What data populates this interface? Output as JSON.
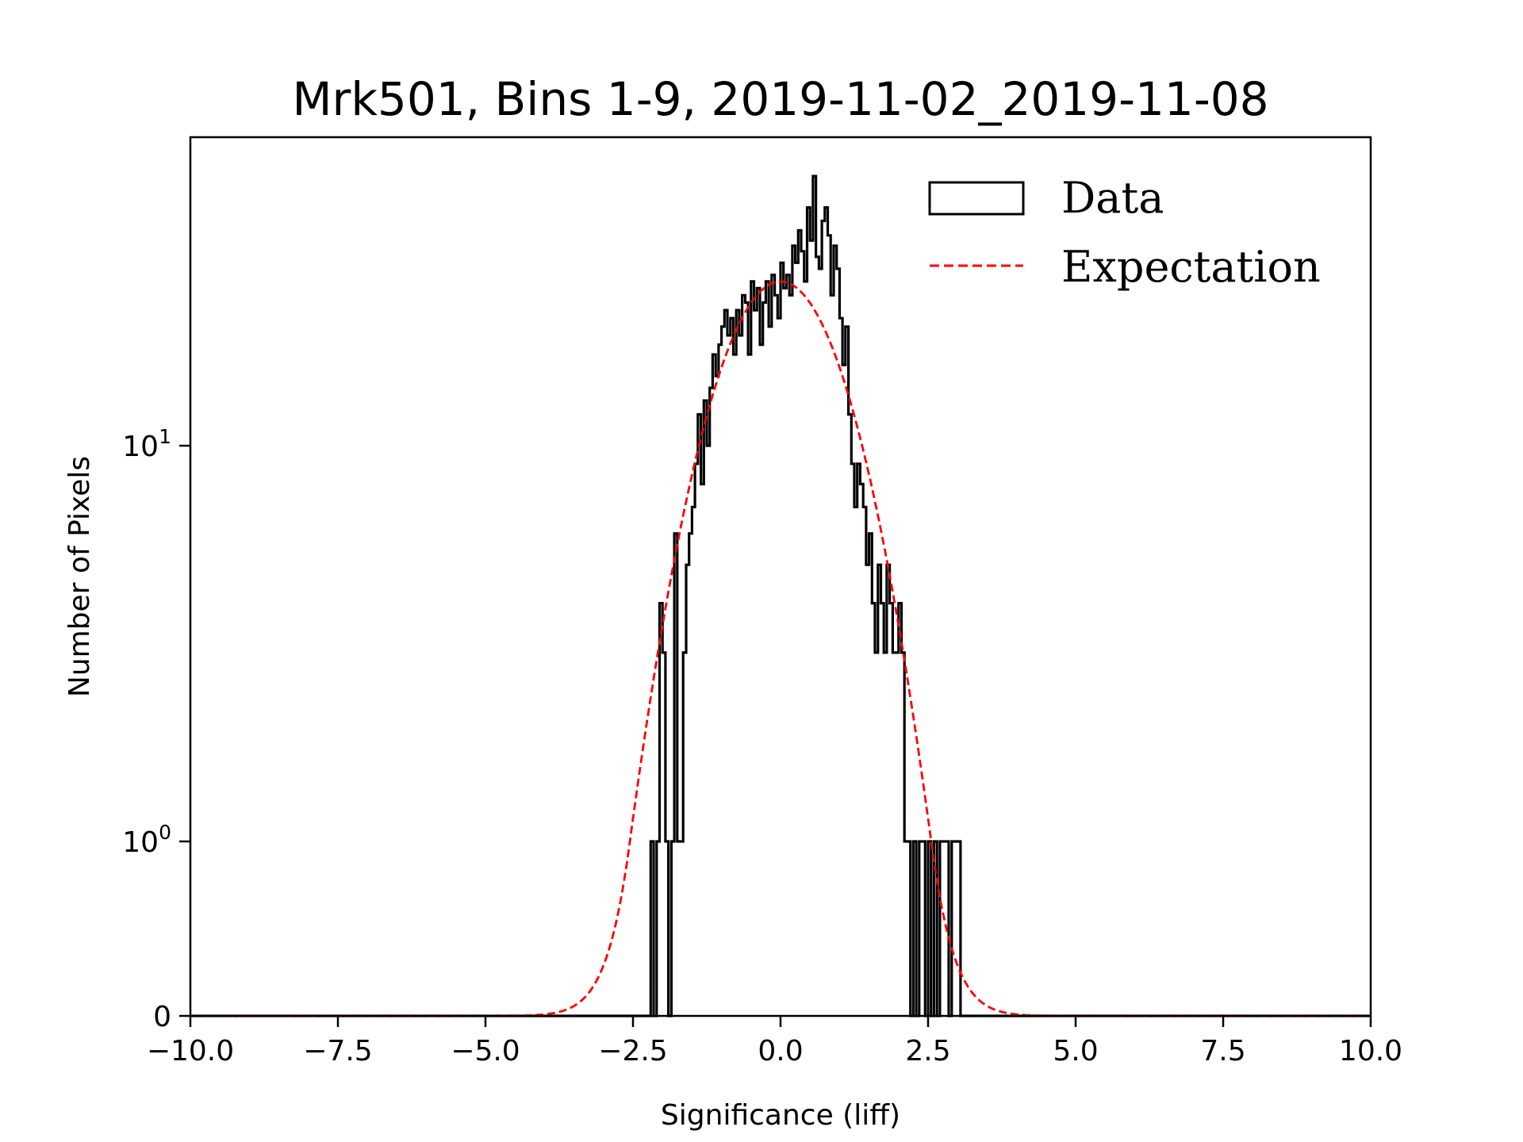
{
  "chart_data": {
    "type": "histogram",
    "title": "Mrk501, Bins 1-9, 2019-11-02_2019-11-08",
    "xlabel": "Significance (liff)",
    "ylabel": "Number of Pixels",
    "xlim": [
      -10.0,
      10.0
    ],
    "ylim": [
      0,
      60
    ],
    "yscale": "symlog",
    "ylinthresh": 1,
    "grid": false,
    "legend_position": "top-right",
    "xticks": [
      -10.0,
      -7.5,
      -5.0,
      -2.5,
      0.0,
      2.5,
      5.0,
      7.5,
      10.0
    ],
    "xtick_labels": [
      "−10.0",
      "−7.5",
      "−5.0",
      "−2.5",
      "0.0",
      "2.5",
      "5.0",
      "7.5",
      "10.0"
    ],
    "yticks": [
      {
        "value": 0,
        "label": "0",
        "sup": ""
      },
      {
        "value": 1,
        "label": "10",
        "sup": "0"
      },
      {
        "value": 10,
        "label": "10",
        "sup": "1"
      }
    ],
    "series": [
      {
        "name": "Data",
        "kind": "step-histogram",
        "color": "#000000",
        "bin_start": -2.2,
        "bin_width": 0.05,
        "counts": [
          1,
          0,
          1,
          4,
          3,
          1,
          0,
          1,
          6,
          1,
          1,
          3,
          5,
          6,
          7,
          9,
          12,
          8,
          13,
          10,
          14,
          17,
          15,
          18,
          20,
          22,
          19,
          21,
          17,
          22,
          19,
          24,
          23,
          17,
          26,
          22,
          25,
          18,
          23,
          26,
          20,
          27,
          24,
          21,
          29,
          25,
          27,
          24,
          32,
          29,
          35,
          31,
          26,
          40,
          33,
          48,
          30,
          28,
          37,
          40,
          34,
          24,
          32,
          28,
          21,
          16,
          20,
          12,
          9,
          7,
          9,
          8,
          7,
          5,
          6,
          4,
          3,
          5,
          4,
          3,
          5,
          4,
          3,
          3,
          4,
          3,
          1,
          1,
          0,
          1,
          0,
          1,
          1,
          0,
          1,
          0,
          1,
          0,
          1,
          1,
          1,
          0,
          1,
          1,
          1
        ]
      },
      {
        "name": "Expectation",
        "kind": "gaussian-curve",
        "color": "#ff0000",
        "linestyle": "dashed",
        "peak": 26,
        "mean": 0.0,
        "sigma": 1.0
      }
    ],
    "legend": [
      {
        "label": "Data",
        "marker": "open-rectangle",
        "color": "#000000"
      },
      {
        "label": "Expectation",
        "marker": "dashed-line",
        "color": "#ff0000"
      }
    ]
  }
}
